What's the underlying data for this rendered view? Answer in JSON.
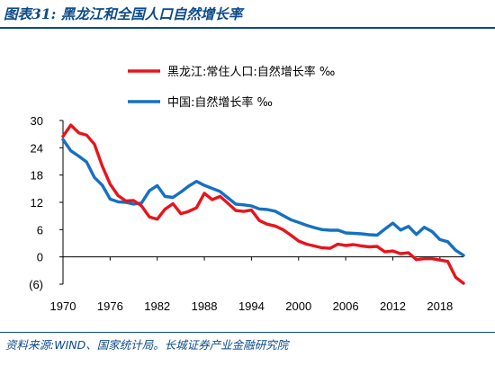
{
  "header": {
    "title": "图表31:  黑龙江和全国人口自然增长率"
  },
  "footer": {
    "source": "资料来源:WIND、国家统计局。长城证券产业金融研究院"
  },
  "colors": {
    "heilongjiang": "#e8141b",
    "china": "#1670c2",
    "brand": "#0c4a8a"
  },
  "chart_data": {
    "type": "line",
    "title": "",
    "xlabel": "",
    "ylabel": "",
    "xlim": [
      1970,
      2021
    ],
    "ylim": [
      -6,
      30
    ],
    "y_ticks": [
      -6,
      0,
      6,
      12,
      18,
      24,
      30
    ],
    "y_tick_labels": [
      "(6)",
      "0",
      "6",
      "12",
      "18",
      "24",
      "30"
    ],
    "x_ticks": [
      1970,
      1976,
      1982,
      1988,
      1994,
      2000,
      2006,
      2012,
      2018
    ],
    "x_tick_labels": [
      "1970",
      "1976",
      "1982",
      "1988",
      "1994",
      "2000",
      "2006",
      "2012",
      "2018"
    ],
    "grid": false,
    "legend_position": "top-center",
    "series": [
      {
        "name": "黑龙江:常住人口:自然增长率 ‰",
        "color": "#e8141b",
        "x": [
          1970,
          1971,
          1972,
          1973,
          1974,
          1975,
          1976,
          1977,
          1978,
          1979,
          1980,
          1981,
          1982,
          1983,
          1984,
          1985,
          1986,
          1987,
          1988,
          1989,
          1990,
          1991,
          1992,
          1993,
          1994,
          1995,
          1996,
          1997,
          1998,
          1999,
          2000,
          2001,
          2002,
          2003,
          2004,
          2005,
          2006,
          2007,
          2008,
          2009,
          2010,
          2011,
          2012,
          2013,
          2014,
          2015,
          2016,
          2017,
          2018,
          2019,
          2020,
          2021
        ],
        "values": [
          26.5,
          29.0,
          27.3,
          26.8,
          24.8,
          20.0,
          16.0,
          13.5,
          12.3,
          12.4,
          11.2,
          8.8,
          8.3,
          10.5,
          11.7,
          9.5,
          10.0,
          10.8,
          14.0,
          12.6,
          13.3,
          11.8,
          10.2,
          10.0,
          10.3,
          8.0,
          7.2,
          6.8,
          6.0,
          4.8,
          3.5,
          2.8,
          2.4,
          2.0,
          1.9,
          2.8,
          2.5,
          2.7,
          2.4,
          2.2,
          2.3,
          1.1,
          1.3,
          0.7,
          0.9,
          -0.6,
          -0.4,
          -0.4,
          -0.7,
          -1.0,
          -4.5,
          -5.8
        ]
      },
      {
        "name": "中国:自然增长率 ‰",
        "color": "#1670c2",
        "x": [
          1970,
          1971,
          1972,
          1973,
          1974,
          1975,
          1976,
          1977,
          1978,
          1979,
          1980,
          1981,
          1982,
          1983,
          1984,
          1985,
          1986,
          1987,
          1988,
          1989,
          1990,
          1991,
          1992,
          1993,
          1994,
          1995,
          1996,
          1997,
          1998,
          1999,
          2000,
          2001,
          2002,
          2003,
          2004,
          2005,
          2006,
          2007,
          2008,
          2009,
          2010,
          2011,
          2012,
          2013,
          2014,
          2015,
          2016,
          2017,
          2018,
          2019,
          2020,
          2021
        ],
        "values": [
          25.83,
          23.33,
          22.16,
          20.89,
          17.48,
          15.77,
          12.72,
          12.12,
          12.0,
          11.61,
          11.87,
          14.55,
          15.68,
          13.29,
          13.08,
          14.26,
          15.57,
          16.61,
          15.73,
          15.04,
          14.39,
          12.98,
          11.6,
          11.45,
          11.21,
          10.55,
          10.42,
          10.06,
          9.14,
          8.18,
          7.58,
          6.95,
          6.45,
          6.01,
          5.87,
          5.89,
          5.28,
          5.17,
          5.08,
          4.87,
          4.79,
          6.13,
          7.43,
          5.9,
          6.71,
          4.93,
          6.53,
          5.58,
          3.81,
          3.34,
          1.45,
          0.34
        ]
      }
    ]
  }
}
